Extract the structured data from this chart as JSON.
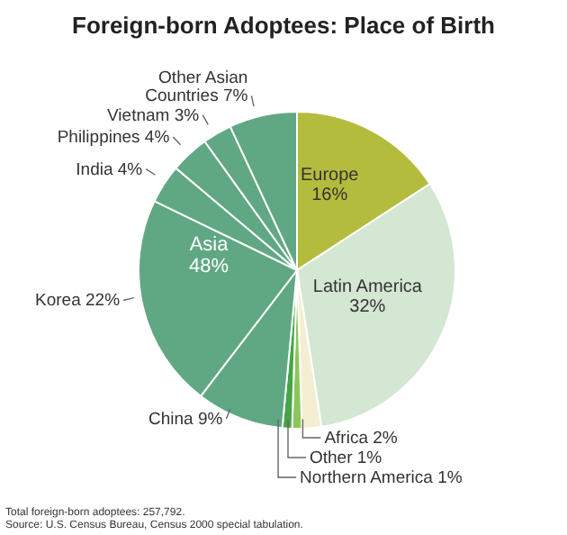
{
  "chart_data": {
    "type": "pie",
    "title": "Foreign-born Adoptees: Place of Birth",
    "categories": [
      "Europe",
      "Latin America",
      "Africa",
      "Other",
      "Northern America",
      "China",
      "Korea",
      "India",
      "Philippines",
      "Vietnam",
      "Other Asian Countries"
    ],
    "values": [
      16,
      32,
      2,
      1,
      1,
      9,
      22,
      4,
      4,
      3,
      7
    ],
    "value_labels": [
      "16%",
      "32%",
      "2%",
      "1%",
      "1%",
      "9%",
      "22%",
      "4%",
      "4%",
      "3%",
      "7%"
    ],
    "colors": [
      "#b4bc3e",
      "#d3e7d3",
      "#f4efd2",
      "#8cc65a",
      "#46a546",
      "#5fa883",
      "#5fa883",
      "#5fa883",
      "#5fa883",
      "#5fa883",
      "#5fa883"
    ],
    "annotations": [
      "Asia 48%",
      "Total foreign-born adoptees: 257,792.",
      "Source: U.S. Census Bureau, Census 2000 special tabulation."
    ]
  }
}
